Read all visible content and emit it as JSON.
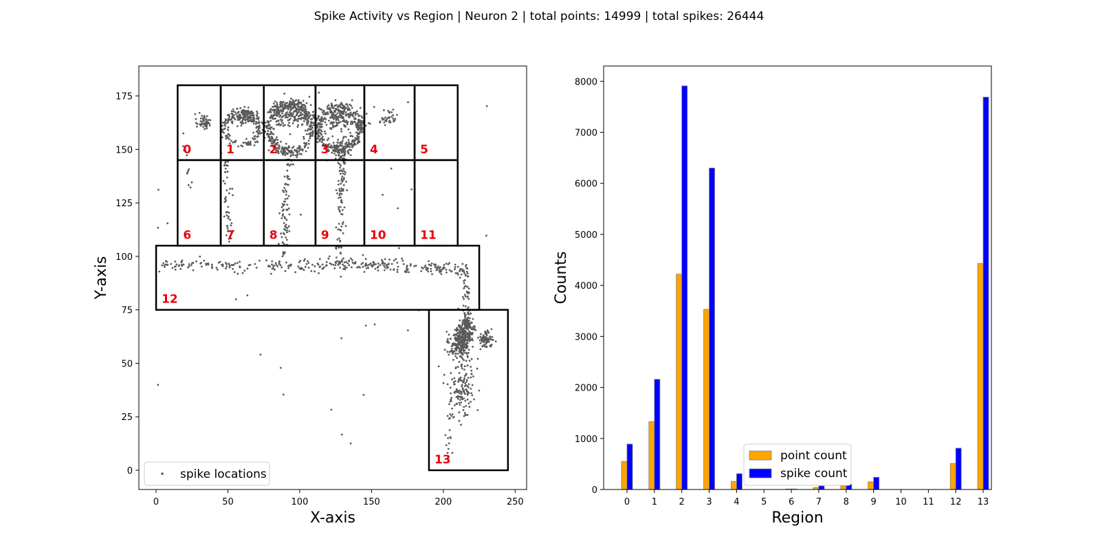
{
  "figure": {
    "title": "Spike Activity vs Region | Neuron 2 | total points: 14999 | total spikes: 26444"
  },
  "colors": {
    "scatter_point": "#5a5a5a",
    "region_label": "#e8000b",
    "point_count_bar": "#ffa500",
    "spike_count_bar": "#0000ff",
    "bar_edge": "#7f7f7f",
    "axis": "#000000"
  },
  "chart_data": [
    {
      "type": "scatter",
      "xlabel": "X-axis",
      "ylabel": "Y-axis",
      "xlim": [
        -12,
        258
      ],
      "ylim": [
        -9,
        189
      ],
      "xticks": [
        0,
        50,
        100,
        150,
        200,
        250
      ],
      "yticks": [
        0,
        25,
        50,
        75,
        100,
        125,
        150,
        175
      ],
      "legend": {
        "position": "lower-left",
        "entries": [
          "spike locations"
        ]
      },
      "regions": [
        {
          "label": "0",
          "x0": 15,
          "x1": 45,
          "y0": 145,
          "y1": 180
        },
        {
          "label": "1",
          "x0": 45,
          "x1": 75,
          "y0": 145,
          "y1": 180
        },
        {
          "label": "2",
          "x0": 75,
          "x1": 111,
          "y0": 145,
          "y1": 180
        },
        {
          "label": "3",
          "x0": 111,
          "x1": 145,
          "y0": 145,
          "y1": 180
        },
        {
          "label": "4",
          "x0": 145,
          "x1": 180,
          "y0": 145,
          "y1": 180
        },
        {
          "label": "5",
          "x0": 180,
          "x1": 210,
          "y0": 145,
          "y1": 180
        },
        {
          "label": "6",
          "x0": 15,
          "x1": 45,
          "y0": 105,
          "y1": 145
        },
        {
          "label": "7",
          "x0": 45,
          "x1": 75,
          "y0": 105,
          "y1": 145
        },
        {
          "label": "8",
          "x0": 75,
          "x1": 111,
          "y0": 105,
          "y1": 145
        },
        {
          "label": "9",
          "x0": 111,
          "x1": 145,
          "y0": 105,
          "y1": 145
        },
        {
          "label": "10",
          "x0": 145,
          "x1": 180,
          "y0": 105,
          "y1": 145
        },
        {
          "label": "11",
          "x0": 180,
          "x1": 210,
          "y0": 105,
          "y1": 145
        },
        {
          "label": "12",
          "x0": 0,
          "x1": 225,
          "y0": 75,
          "y1": 105
        },
        {
          "label": "13",
          "x0": 190,
          "x1": 245,
          "y0": 0,
          "y1": 75
        }
      ],
      "point_clusters": [
        {
          "kind": "blob",
          "cx": 33,
          "cy": 163,
          "rx": 4,
          "ry": 3,
          "n": 50
        },
        {
          "kind": "ring",
          "cx": 60,
          "cy": 160,
          "rx": 12,
          "ry": 8,
          "n": 160
        },
        {
          "kind": "blob",
          "cx": 62,
          "cy": 165,
          "rx": 6,
          "ry": 3,
          "n": 90
        },
        {
          "kind": "ring",
          "cx": 93,
          "cy": 160,
          "rx": 15,
          "ry": 11,
          "n": 340
        },
        {
          "kind": "blob",
          "cx": 95,
          "cy": 167,
          "rx": 14,
          "ry": 5,
          "n": 200
        },
        {
          "kind": "ring",
          "cx": 127,
          "cy": 160,
          "rx": 15,
          "ry": 10,
          "n": 300
        },
        {
          "kind": "blob",
          "cx": 128,
          "cy": 164,
          "rx": 12,
          "ry": 5,
          "n": 160
        },
        {
          "kind": "blob",
          "cx": 128,
          "cy": 150,
          "rx": 6,
          "ry": 5,
          "n": 80
        },
        {
          "kind": "blob",
          "cx": 162,
          "cy": 165,
          "rx": 5,
          "ry": 2.5,
          "n": 35
        },
        {
          "kind": "line",
          "x1": 20,
          "y1": 159,
          "x2": 23,
          "y2": 130,
          "n": 12
        },
        {
          "kind": "line",
          "x1": 48,
          "y1": 148,
          "x2": 51,
          "y2": 108,
          "n": 45
        },
        {
          "kind": "line",
          "x1": 92,
          "y1": 148,
          "x2": 89,
          "y2": 100,
          "n": 85
        },
        {
          "kind": "line",
          "x1": 130,
          "y1": 148,
          "x2": 128,
          "y2": 102,
          "n": 95
        },
        {
          "kind": "line",
          "x1": 2,
          "y1": 96,
          "x2": 120,
          "y2": 95,
          "n": 140
        },
        {
          "kind": "line",
          "x1": 120,
          "y1": 97,
          "x2": 215,
          "y2": 94,
          "n": 190
        },
        {
          "kind": "line",
          "x1": 215,
          "y1": 94,
          "x2": 217,
          "y2": 72,
          "n": 45
        },
        {
          "kind": "blob",
          "cx": 212,
          "cy": 60,
          "rx": 6,
          "ry": 6,
          "n": 260
        },
        {
          "kind": "blob",
          "cx": 217,
          "cy": 67,
          "rx": 4,
          "ry": 5,
          "n": 120
        },
        {
          "kind": "blob",
          "cx": 229,
          "cy": 61,
          "rx": 4,
          "ry": 3,
          "n": 80
        },
        {
          "kind": "blob",
          "cx": 214,
          "cy": 40,
          "rx": 7,
          "ry": 13,
          "n": 140
        },
        {
          "kind": "line",
          "x1": 208,
          "y1": 38,
          "x2": 203,
          "y2": 8,
          "n": 22
        },
        {
          "kind": "scatter",
          "x0": 0,
          "x1": 240,
          "y0": 5,
          "y1": 178,
          "n": 40
        }
      ]
    },
    {
      "type": "bar",
      "xlabel": "Region",
      "ylabel": "Counts",
      "categories": [
        "0",
        "1",
        "2",
        "3",
        "4",
        "5",
        "6",
        "7",
        "8",
        "9",
        "10",
        "11",
        "12",
        "13"
      ],
      "ylim": [
        0,
        8300
      ],
      "yticks": [
        0,
        1000,
        2000,
        3000,
        4000,
        5000,
        6000,
        7000,
        8000
      ],
      "legend": {
        "position": "lower-center"
      },
      "series": [
        {
          "name": "point count",
          "values": [
            550,
            1330,
            4220,
            3530,
            160,
            0,
            10,
            40,
            70,
            150,
            0,
            0,
            510,
            4430
          ]
        },
        {
          "name": "spike count",
          "values": [
            890,
            2160,
            7910,
            6300,
            310,
            0,
            10,
            70,
            100,
            240,
            0,
            0,
            810,
            7690
          ]
        }
      ]
    }
  ]
}
